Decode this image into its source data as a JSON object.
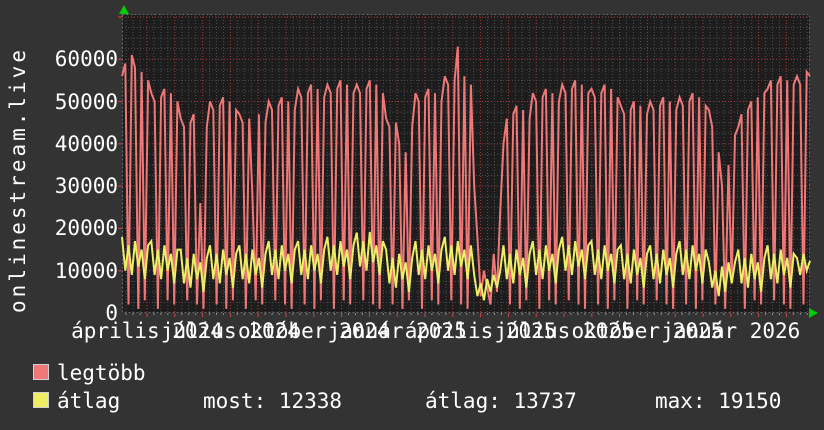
{
  "chart_title": "onlinestream.live",
  "legend": {
    "items": [
      {
        "label": "legtöbb",
        "color": "#ee7777"
      },
      {
        "label": "átlag",
        "color": "#eeee66"
      }
    ],
    "stats": [
      {
        "text": "most: 12338"
      },
      {
        "text": "átlag: 13737"
      },
      {
        "text": "max: 19150"
      }
    ]
  },
  "colors": {
    "background": "#333333",
    "plot_background": "#1d1d1d",
    "grid_minor": "#4d4d4d",
    "grid_major": "#a83a3a",
    "border": "#6a6a6a",
    "series_legtobb": "#ee7777",
    "series_atlag": "#eeee66",
    "text": "#ffffff",
    "axis_arrow": "#00cc00"
  },
  "chart_data": {
    "type": "line",
    "title": "onlinestream.live",
    "ylabel": "",
    "xlabel": "",
    "ylim": [
      0,
      70700
    ],
    "grid": true,
    "legend_position": "bottom-left",
    "y_ticks": [
      {
        "label": "0",
        "value": 0
      },
      {
        "label": "10000",
        "value": 10000
      },
      {
        "label": "20000",
        "value": 20000
      },
      {
        "label": "30000",
        "value": 30000
      },
      {
        "label": "40000",
        "value": 40000
      },
      {
        "label": "50000",
        "value": 50000
      },
      {
        "label": "60000",
        "value": 60000
      }
    ],
    "x_ticks": [
      {
        "label": "április 2024",
        "month_index": 0
      },
      {
        "label": "július 2024",
        "month_index": 3
      },
      {
        "label": "október 2024",
        "month_index": 6
      },
      {
        "label": "január 2025",
        "month_index": 9
      },
      {
        "label": "április 2025",
        "month_index": 12
      },
      {
        "label": "július 2025",
        "month_index": 15
      },
      {
        "label": "október 2025",
        "month_index": 18
      },
      {
        "label": "január 2026",
        "month_index": 21
      }
    ],
    "stats": {
      "most": 12338,
      "atlag": 13737,
      "max": 19150
    },
    "series": [
      {
        "name": "legtöbb",
        "color": "#ee7777",
        "values": [
          56000,
          59000,
          2000,
          61000,
          58000,
          1000,
          57000,
          3000,
          55000,
          52000,
          50000,
          1000,
          51000,
          53000,
          3000,
          52000,
          2000,
          50000,
          46000,
          44000,
          3000,
          45000,
          47000,
          2000,
          26000,
          1000,
          44000,
          50000,
          48000,
          2000,
          49000,
          51000,
          1000,
          50000,
          3000,
          48000,
          47000,
          45000,
          1000,
          46000,
          28000,
          3000,
          47000,
          2000,
          45000,
          50000,
          48000,
          3000,
          49000,
          51000,
          2000,
          50000,
          1000,
          48000,
          53000,
          51000,
          2000,
          52000,
          54000,
          1000,
          53000,
          3000,
          51000,
          54000,
          52000,
          1000,
          53000,
          55000,
          3000,
          54000,
          2000,
          52000,
          54000,
          52000,
          3000,
          53000,
          55000,
          2000,
          54000,
          1000,
          52000,
          46000,
          44000,
          2000,
          45000,
          40000,
          1000,
          38000,
          3000,
          44000,
          52000,
          50000,
          1000,
          51000,
          53000,
          3000,
          52000,
          2000,
          50000,
          56000,
          54000,
          3000,
          55000,
          63000,
          2000,
          56000,
          1000,
          54000,
          30000,
          18000,
          4000,
          10000,
          6000,
          2000,
          14000,
          5000,
          24000,
          40000,
          46000,
          2000,
          47000,
          49000,
          1000,
          48000,
          3000,
          46000,
          52000,
          50000,
          1000,
          51000,
          53000,
          3000,
          52000,
          2000,
          50000,
          54000,
          52000,
          3000,
          53000,
          55000,
          2000,
          54000,
          1000,
          52000,
          53000,
          51000,
          2000,
          52000,
          54000,
          1000,
          53000,
          3000,
          51000,
          49000,
          47000,
          1000,
          48000,
          50000,
          3000,
          49000,
          2000,
          47000,
          50000,
          48000,
          3000,
          49000,
          51000,
          2000,
          50000,
          1000,
          48000,
          51000,
          49000,
          2000,
          50000,
          52000,
          1000,
          51000,
          3000,
          49000,
          48000,
          44000,
          2000,
          38000,
          30000,
          1000,
          35000,
          7000,
          42000,
          44000,
          47000,
          1000,
          48000,
          50000,
          3000,
          51000,
          2000,
          52000,
          53000,
          55000,
          3000,
          54000,
          56000,
          2000,
          55000,
          1000,
          54000,
          56000,
          54000,
          2000,
          57000,
          56000
        ]
      },
      {
        "name": "átlag",
        "color": "#eeee66",
        "values": [
          18000,
          10000,
          16000,
          9000,
          17000,
          11000,
          15000,
          8000,
          16000,
          17000,
          9000,
          15000,
          8000,
          16000,
          10000,
          14000,
          7000,
          15000,
          15000,
          7000,
          13000,
          6000,
          14000,
          8000,
          12000,
          5000,
          13000,
          16000,
          8000,
          14000,
          7000,
          15000,
          9000,
          13000,
          6000,
          14000,
          16000,
          8000,
          14000,
          7000,
          15000,
          9000,
          13000,
          6000,
          14000,
          17000,
          9000,
          15000,
          8000,
          16000,
          10000,
          14000,
          7000,
          15000,
          17000,
          9000,
          15000,
          8000,
          16000,
          10000,
          14000,
          7000,
          15000,
          18000,
          10000,
          16000,
          9000,
          17000,
          11000,
          15000,
          8000,
          16000,
          19000,
          11000,
          17000,
          10000,
          19150,
          12000,
          16000,
          9000,
          17000,
          15000,
          7000,
          13000,
          6000,
          14000,
          8000,
          12000,
          5000,
          13000,
          17000,
          9000,
          15000,
          8000,
          16000,
          10000,
          14000,
          7000,
          15000,
          18000,
          10000,
          16000,
          9000,
          17000,
          11000,
          15000,
          8000,
          16000,
          9000,
          4000,
          7000,
          3000,
          8000,
          5000,
          9000,
          6000,
          10000,
          16000,
          8000,
          14000,
          7000,
          15000,
          9000,
          13000,
          6000,
          14000,
          17000,
          9000,
          15000,
          8000,
          16000,
          10000,
          14000,
          7000,
          15000,
          18000,
          10000,
          16000,
          9000,
          17000,
          11000,
          15000,
          8000,
          16000,
          17000,
          9000,
          15000,
          8000,
          16000,
          10000,
          14000,
          7000,
          15000,
          16000,
          8000,
          14000,
          7000,
          15000,
          9000,
          13000,
          6000,
          14000,
          16000,
          8000,
          14000,
          7000,
          15000,
          9000,
          13000,
          6000,
          14000,
          17000,
          9000,
          15000,
          8000,
          16000,
          10000,
          14000,
          7000,
          15000,
          12000,
          6000,
          10000,
          4000,
          11000,
          5000,
          12000,
          7000,
          12000,
          15000,
          7000,
          13000,
          6000,
          14000,
          8000,
          12000,
          5000,
          13000,
          16000,
          8000,
          14000,
          7000,
          15000,
          9000,
          13000,
          6000,
          14000,
          13000,
          9000,
          14000,
          10000,
          12338
        ]
      }
    ]
  }
}
